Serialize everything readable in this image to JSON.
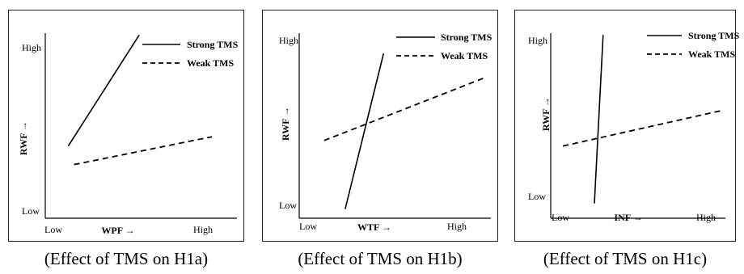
{
  "panels": [
    {
      "caption": "(Effect of TMS on H1a)",
      "chart_data": {
        "type": "line",
        "x": [
          "Low",
          "High"
        ],
        "xlabel": "WPF →",
        "ylabel": "RWF →",
        "yticks": [
          "High",
          "Low"
        ],
        "legend_position": "top-right",
        "series": [
          {
            "name": "Strong TMS",
            "style": "solid",
            "start": [
              0.12,
              0.39
            ],
            "end": [
              0.49,
              0.99
            ]
          },
          {
            "name": "Weak TMS",
            "style": "dashed",
            "start": [
              0.15,
              0.29
            ],
            "end": [
              0.87,
              0.44
            ]
          }
        ]
      }
    },
    {
      "caption": "(Effect of TMS on H1b)",
      "chart_data": {
        "type": "line",
        "x": [
          "Low",
          "High"
        ],
        "xlabel": "WTF →",
        "ylabel": "RWF →",
        "yticks": [
          "High",
          "Low"
        ],
        "legend_position": "top-right",
        "series": [
          {
            "name": "Strong TMS",
            "style": "solid",
            "start": [
              0.24,
              0.05
            ],
            "end": [
              0.44,
              0.89
            ]
          },
          {
            "name": "Weak TMS",
            "style": "dashed",
            "start": [
              0.13,
              0.42
            ],
            "end": [
              0.97,
              0.76
            ]
          }
        ]
      }
    },
    {
      "caption": "(Effect of TMS on H1c)",
      "chart_data": {
        "type": "line",
        "x": [
          "Low",
          "High"
        ],
        "xlabel": "INF →",
        "ylabel": "RWF →",
        "yticks": [
          "High",
          "Low"
        ],
        "legend_position": "top-right",
        "series": [
          {
            "name": "Strong TMS",
            "style": "solid",
            "start": [
              0.25,
              0.08
            ],
            "end": [
              0.3,
              0.99
            ]
          },
          {
            "name": "Weak TMS",
            "style": "dashed",
            "start": [
              0.07,
              0.39
            ],
            "end": [
              0.97,
              0.58
            ]
          }
        ]
      }
    }
  ]
}
